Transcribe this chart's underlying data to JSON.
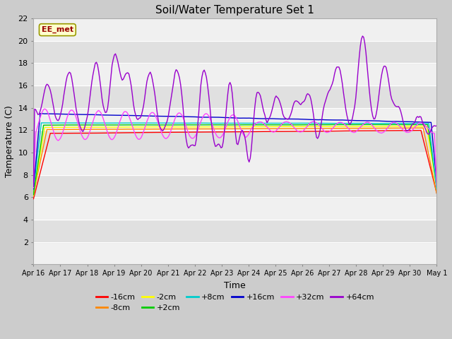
{
  "title": "Soil/Water Temperature Set 1",
  "xlabel": "Time",
  "ylabel": "Temperature (C)",
  "ylim": [
    0,
    22
  ],
  "yticks": [
    0,
    2,
    4,
    6,
    8,
    10,
    12,
    14,
    16,
    18,
    20,
    22
  ],
  "date_labels": [
    "Apr 16",
    "Apr 17",
    "Apr 18",
    "Apr 19",
    "Apr 20",
    "Apr 21",
    "Apr 22",
    "Apr 23",
    "Apr 24",
    "Apr 25",
    "Apr 26",
    "Apr 27",
    "Apr 28",
    "Apr 29",
    "Apr 30",
    "May 1"
  ],
  "annotation_text": "EE_met",
  "annotation_bg": "#ffffcc",
  "annotation_border": "#999900",
  "annotation_text_color": "#990000",
  "series": [
    {
      "label": "-16cm",
      "color": "#ff0000"
    },
    {
      "label": "-8cm",
      "color": "#ff8800"
    },
    {
      "label": "-2cm",
      "color": "#ffff00"
    },
    {
      "label": "+2cm",
      "color": "#00cc00"
    },
    {
      "label": "+8cm",
      "color": "#00cccc"
    },
    {
      "label": "+16cm",
      "color": "#0000cc"
    },
    {
      "label": "+32cm",
      "color": "#ff44ff"
    },
    {
      "label": "+64cm",
      "color": "#9900cc"
    }
  ],
  "bg_strip_light": "#f0f0f0",
  "bg_strip_dark": "#e0e0e0",
  "grid_line_color": "#ffffff"
}
